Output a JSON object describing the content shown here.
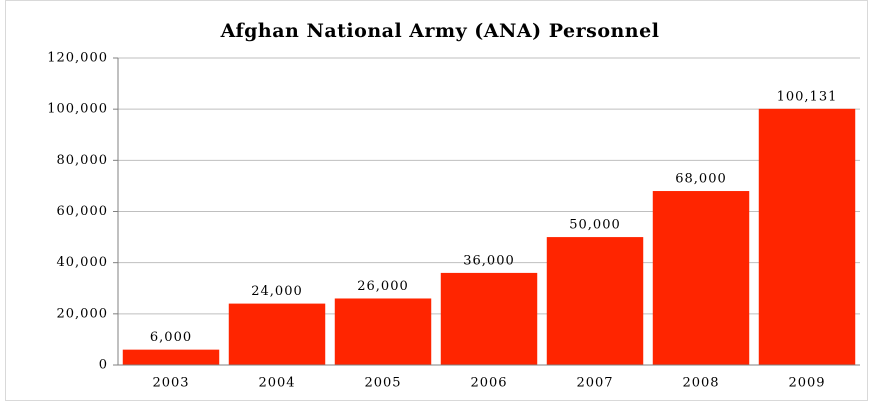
{
  "chart_data": {
    "type": "bar",
    "title": "Afghan National Army (ANA) Personnel",
    "categories": [
      "2003",
      "2004",
      "2005",
      "2006",
      "2007",
      "2008",
      "2009"
    ],
    "values": [
      6000,
      24000,
      26000,
      36000,
      50000,
      68000,
      100131
    ],
    "value_labels": [
      "6,000",
      "24,000",
      "26,000",
      "36,000",
      "50,000",
      "68,000",
      "100,131"
    ],
    "color": "#ff2500",
    "ylim": [
      0,
      120000
    ],
    "yticks": [
      0,
      {
        "value": 20000,
        "label": "20,000"
      },
      {
        "value": 40000,
        "label": "40,000"
      },
      {
        "value": 60000,
        "label": "60,000"
      },
      {
        "value": 80000,
        "label": "80,000"
      },
      {
        "value": 100000,
        "label": "100,000"
      },
      {
        "value": 120000,
        "label": "120,000"
      }
    ],
    "grid": true
  }
}
